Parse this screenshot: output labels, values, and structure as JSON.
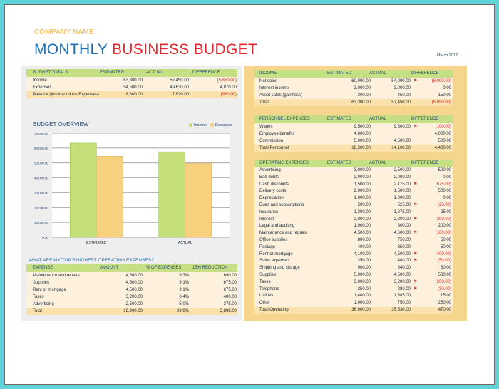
{
  "header": {
    "company": "COMPANY NAME",
    "title_part1": "MONTHLY",
    "title_part2": "BUSINESS BUDGET",
    "date": "March 2017"
  },
  "colors": {
    "blue": "#1f6fb4",
    "red": "#e3262b",
    "header_green": "#c4df84",
    "income": "#c5e07a",
    "expenses": "#f7d27e"
  },
  "budget_totals": {
    "headers": [
      "BUDGET TOTALS",
      "ESTIMATED",
      "ACTUAL",
      "DIFFERENCE"
    ],
    "rows": [
      [
        "Income",
        "63,300.00",
        "57,450.00",
        "(5,850.00)"
      ],
      [
        "Expenses",
        "54,500.00",
        "49,630.00",
        "4,870.00"
      ]
    ],
    "total": [
      "Balance (Income minus Expenses)",
      "8,800.00",
      "7,820.00",
      "(980.00)"
    ]
  },
  "chart_data": {
    "type": "bar",
    "title": "BUDGET OVERVIEW",
    "categories": [
      "ESTIMATED",
      "ACTUAL"
    ],
    "series": [
      {
        "name": "Income",
        "values": [
          63300,
          57450
        ]
      },
      {
        "name": "Expenses",
        "values": [
          54500,
          49630
        ]
      }
    ],
    "ylim": [
      0,
      70000
    ],
    "yticks": [
      "0.00",
      "10,000.00",
      "20,000.00",
      "30,000.00",
      "40,000.00",
      "50,000.00",
      "60,000.00",
      "70,000.00"
    ],
    "grid": true,
    "legend": "top-right"
  },
  "top5": {
    "title": "WHAT ARE MY TOP 5 HIGHEST OPERATING EXPENSES?",
    "headers": [
      "EXPENSE",
      "AMOUNT",
      "% OF EXPENSES",
      "15% REDUCTION"
    ],
    "rows": [
      [
        "Maintenance and repairs",
        "4,600.00",
        "9.3%",
        "690.00"
      ],
      [
        "Supplies",
        "4,500.00",
        "9.1%",
        "675.00"
      ],
      [
        "Rent or mortgage",
        "4,500.00",
        "9.1%",
        "675.00"
      ],
      [
        "Taxes",
        "3,200.00",
        "6.4%",
        "480.00"
      ],
      [
        "Advertising",
        "2,500.00",
        "5.0%",
        "375.00"
      ]
    ],
    "total": [
      "Total",
      "19,300.00",
      "38.9%",
      "2,895.00"
    ]
  },
  "income": {
    "headers": [
      "INCOME",
      "ESTIMATED",
      "ACTUAL",
      "DIFFERENCE"
    ],
    "rows": [
      [
        "Net sales",
        "60,000.00",
        "54,000.00",
        "(6,000.00)",
        true
      ],
      [
        "Interest income",
        "3,000.00",
        "3,000.00",
        "0.00",
        false
      ],
      [
        "Asset sales (gain/loss)",
        "300.00",
        "450.00",
        "150.00",
        false
      ]
    ],
    "total": [
      "Total",
      "63,300.00",
      "57,450.00",
      "(5,850.00)"
    ]
  },
  "personnel": {
    "headers": [
      "PERSONNEL EXPENSES",
      "ESTIMATED",
      "ACTUAL",
      "DIFFERENCE"
    ],
    "rows": [
      [
        "Wages",
        "9,500.00",
        "9,600.00",
        "(100.00)",
        true
      ],
      [
        "Employee benefits",
        "4,000.00",
        "",
        "4,000.00",
        false
      ],
      [
        "Commission",
        "5,000.00",
        "4,500.00",
        "500.00",
        false
      ]
    ],
    "total": [
      "Total Personnel",
      "18,500.00",
      "14,100.00",
      "4,400.00"
    ]
  },
  "operating": {
    "headers": [
      "OPERATING EXPENSES",
      "ESTIMATED",
      "ACTUAL",
      "DIFFERENCE"
    ],
    "rows": [
      [
        "Advertising",
        "3,000.00",
        "2,500.00",
        "500.00",
        false
      ],
      [
        "Bad debts",
        "2,000.00",
        "2,000.00",
        "0.00",
        false
      ],
      [
        "Cash discounts",
        "1,500.00",
        "2,175.00",
        "(675.00)",
        true
      ],
      [
        "Delivery costs",
        "2,000.00",
        "1,500.00",
        "500.00",
        false
      ],
      [
        "Depreciation",
        "1,000.00",
        "1,000.00",
        "0.00",
        false
      ],
      [
        "Dues and subscriptions",
        "500.00",
        "525.00",
        "(25.00)",
        true
      ],
      [
        "Insurance",
        "1,300.00",
        "1,275.00",
        "25.00",
        false
      ],
      [
        "Interest",
        "2,000.00",
        "2,200.00",
        "(200.00)",
        true
      ],
      [
        "Legal and auditing",
        "1,000.00",
        "800.00",
        "200.00",
        false
      ],
      [
        "Maintenance and repairs",
        "4,500.00",
        "4,600.00",
        "(100.00)",
        true
      ],
      [
        "Office supplies",
        "800.00",
        "750.00",
        "50.00",
        false
      ],
      [
        "Postage",
        "400.00",
        "350.00",
        "50.00",
        false
      ],
      [
        "Rent or mortgage",
        "4,100.00",
        "4,500.00",
        "(400.00)",
        true
      ],
      [
        "Sales expenses",
        "350.00",
        "400.00",
        "(50.00)",
        true
      ],
      [
        "Shipping and storage",
        "900.00",
        "840.00",
        "60.00",
        false
      ],
      [
        "Supplies",
        "5,000.00",
        "4,500.00",
        "500.00",
        false
      ],
      [
        "Taxes",
        "3,000.00",
        "3,200.00",
        "(200.00)",
        true
      ],
      [
        "Telephone",
        "250.00",
        "280.00",
        "(30.00)",
        true
      ],
      [
        "Utilities",
        "1,400.00",
        "1,385.00",
        "15.00",
        false
      ],
      [
        "Other",
        "1,000.00",
        "750.00",
        "250.00",
        false
      ]
    ],
    "total": [
      "Total Operating",
      "36,000.00",
      "35,530.00",
      "470.00"
    ]
  }
}
